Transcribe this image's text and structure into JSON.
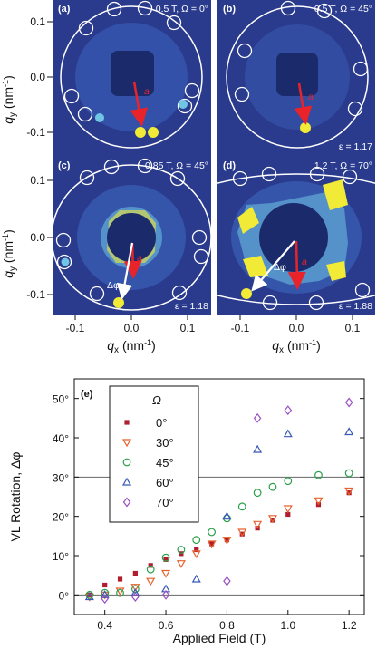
{
  "colors": {
    "background": "#2a3a8c",
    "blob": "#1b2a6b",
    "low": "#3f6fc9",
    "mid": "#6fc5e3",
    "high": "#f1ea36",
    "arrow_red": "#e8242a",
    "arrow_white": "#ffffff",
    "s0": "#b01e2e",
    "s30": "#e8612c",
    "s45": "#2aa04a",
    "s60": "#3858b8",
    "s70": "#9a4fc4"
  },
  "axis": {
    "qy_label": "q",
    "qy_sub": "y",
    "qy_unit": "(nm",
    "qy_unit_exp": "-1",
    "qy_close": ")",
    "qx_label": "q",
    "qx_sub": "x",
    "qx_unit": "(nm",
    "qx_unit_exp": "-1",
    "qx_close": ")",
    "y_ticks": [
      "0.1",
      "0.0",
      "-0.1"
    ],
    "x_ticks": [
      "-0.1",
      "0.0",
      "0.1"
    ]
  },
  "panels": [
    {
      "label": "(a)",
      "info": "0.5 T, Ω = 0°",
      "epsilon": ""
    },
    {
      "label": "(b)",
      "info": "0.5 T, Ω = 45°",
      "epsilon": "ε = 1.17"
    },
    {
      "label": "(c)",
      "info": "0.85 T, Ω = 45°",
      "epsilon": "ε = 1.18"
    },
    {
      "label": "(d)",
      "info": "1.2 T, Ω = 70°",
      "epsilon": "ε = 1.88"
    }
  ],
  "annotations": {
    "a_symbol": "a",
    "delta_phi": "Δφ"
  },
  "chart_data": {
    "type": "scatter",
    "panel_label": "(e)",
    "xlabel": "Applied Field (T)",
    "ylabel": "VL Rotation, Δφ",
    "xlim": [
      0.3,
      1.25
    ],
    "ylim": [
      -5,
      55
    ],
    "x_ticks": [
      "0.4",
      "0.6",
      "0.8",
      "1.0",
      "1.2"
    ],
    "y_ticks": [
      "0°",
      "10°",
      "20°",
      "30°",
      "40°",
      "50°"
    ],
    "reference_lines": [
      0,
      30
    ],
    "legend_title": "Ω",
    "legend_position": "top-left",
    "series": [
      {
        "name": "0°",
        "marker": "square",
        "color": "#b01e2e",
        "x": [
          0.35,
          0.4,
          0.45,
          0.5,
          0.55,
          0.6,
          0.65,
          0.7,
          0.75,
          0.8,
          0.85,
          0.9,
          0.95,
          1.0,
          1.1,
          1.2
        ],
        "y": [
          0,
          2.5,
          4,
          5.5,
          7.5,
          9,
          10.5,
          11.5,
          13,
          14,
          15.5,
          17,
          19,
          20.5,
          23,
          26
        ]
      },
      {
        "name": "30°",
        "marker": "triangle-down",
        "color": "#e8612c",
        "x": [
          0.35,
          0.4,
          0.45,
          0.5,
          0.55,
          0.6,
          0.65,
          0.7,
          0.75,
          0.8,
          0.85,
          0.9,
          0.95,
          1.0,
          1.1,
          1.2
        ],
        "y": [
          -0.5,
          0,
          1,
          2,
          3.5,
          5.5,
          8,
          10.5,
          13,
          14,
          16,
          18,
          19.5,
          22,
          24,
          26.5
        ]
      },
      {
        "name": "45°",
        "marker": "circle",
        "color": "#2aa04a",
        "x": [
          0.35,
          0.4,
          0.45,
          0.5,
          0.55,
          0.6,
          0.65,
          0.7,
          0.75,
          0.8,
          0.85,
          0.9,
          0.95,
          1.0,
          1.1,
          1.2
        ],
        "y": [
          0,
          0.5,
          0.5,
          1.5,
          6.5,
          9.5,
          11.5,
          14,
          16,
          19.5,
          22.5,
          26,
          27.5,
          29,
          30.5,
          31
        ]
      },
      {
        "name": "60°",
        "marker": "triangle-up",
        "color": "#3858b8",
        "x": [
          0.35,
          0.4,
          0.5,
          0.6,
          0.7,
          0.8,
          0.9,
          1.0,
          1.2
        ],
        "y": [
          -0.5,
          0,
          0.5,
          1.5,
          4,
          20,
          37,
          41,
          41.5
        ]
      },
      {
        "name": "70°",
        "marker": "diamond",
        "color": "#9a4fc4",
        "x": [
          0.4,
          0.5,
          0.6,
          0.8,
          0.9,
          1.0,
          1.2
        ],
        "y": [
          -1,
          -0.5,
          0,
          3.5,
          45,
          47,
          49
        ]
      }
    ]
  }
}
